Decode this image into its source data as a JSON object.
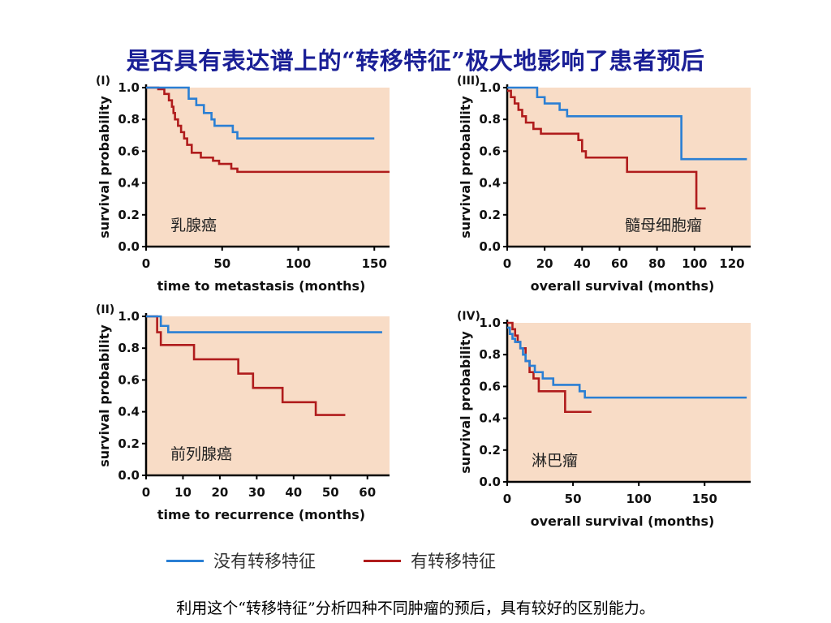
{
  "title": "是否具有表达谱上的“转移特征”极大地影响了患者预后",
  "caption": "利用这个“转移特征”分析四种不同肿瘤的预后，具有较好的区别能力。",
  "legend": {
    "no_signature": "没有转移特征",
    "signature": "有转移特征"
  },
  "colors": {
    "no_signature": "#2a7fd4",
    "signature": "#b01c1c",
    "plot_bg": "#f8dcc6",
    "axis": "#000000",
    "title": "#1a1f96"
  },
  "chart_data": [
    {
      "type": "line",
      "step": true,
      "panel_label": "(I)",
      "annotation": "乳腺癌",
      "xlabel": "time to metastasis (months)",
      "ylabel": "survival probability",
      "xlim": [
        0,
        160
      ],
      "ylim": [
        0,
        1.0
      ],
      "xticks": [
        0,
        50,
        100,
        150
      ],
      "yticks": [
        0.0,
        0.2,
        0.4,
        0.6,
        0.8,
        1.0
      ],
      "xtick_labels": [
        "0",
        "50",
        "100",
        "150"
      ],
      "ytick_labels": [
        "0.0",
        "0.2",
        "0.4",
        "0.6",
        "0.8",
        "1.0"
      ],
      "series": [
        {
          "key": "no_signature",
          "x": [
            0,
            20,
            28,
            33,
            38,
            43,
            45,
            50,
            57,
            60,
            150
          ],
          "y": [
            1.0,
            1.0,
            0.93,
            0.89,
            0.84,
            0.8,
            0.76,
            0.76,
            0.72,
            0.68,
            0.68
          ]
        },
        {
          "key": "signature",
          "x": [
            0,
            8,
            12,
            15,
            17,
            18,
            19,
            21,
            23,
            25,
            27,
            30,
            36,
            44,
            48,
            56,
            60,
            160
          ],
          "y": [
            1.0,
            0.99,
            0.96,
            0.92,
            0.88,
            0.84,
            0.8,
            0.76,
            0.72,
            0.68,
            0.64,
            0.59,
            0.56,
            0.54,
            0.52,
            0.49,
            0.47,
            0.47
          ]
        }
      ]
    },
    {
      "type": "line",
      "step": true,
      "panel_label": "(III)",
      "annotation": "髓母细胞瘤",
      "xlabel": "overall survival (months)",
      "ylabel": "survival probability",
      "xlim": [
        0,
        130
      ],
      "ylim": [
        0,
        1.0
      ],
      "xticks": [
        0,
        20,
        40,
        60,
        80,
        100,
        120
      ],
      "yticks": [
        0.0,
        0.2,
        0.4,
        0.6,
        0.8,
        1.0
      ],
      "xtick_labels": [
        "0",
        "20",
        "40",
        "60",
        "80",
        "100",
        "120"
      ],
      "ytick_labels": [
        "0.0",
        "0.2",
        "0.4",
        "0.6",
        "0.8",
        "1.0"
      ],
      "series": [
        {
          "key": "no_signature",
          "x": [
            0,
            14,
            16,
            20,
            28,
            32,
            93,
            128
          ],
          "y": [
            1.0,
            1.0,
            0.94,
            0.9,
            0.86,
            0.82,
            0.55,
            0.55
          ]
        },
        {
          "key": "signature",
          "x": [
            0,
            2,
            4,
            6,
            8,
            10,
            14,
            18,
            23,
            38,
            40,
            42,
            64,
            97,
            101,
            106
          ],
          "y": [
            0.98,
            0.94,
            0.9,
            0.86,
            0.82,
            0.78,
            0.74,
            0.71,
            0.71,
            0.67,
            0.6,
            0.56,
            0.47,
            0.47,
            0.24,
            0.24
          ]
        }
      ]
    },
    {
      "type": "line",
      "step": true,
      "panel_label": "(II)",
      "annotation": "前列腺癌",
      "xlabel": "time to recurrence (months)",
      "ylabel": "survival probability",
      "xlim": [
        0,
        66
      ],
      "ylim": [
        0,
        1.0
      ],
      "xticks": [
        0,
        10,
        20,
        30,
        40,
        50,
        60
      ],
      "yticks": [
        0.0,
        0.2,
        0.4,
        0.6,
        0.8,
        1.0
      ],
      "xtick_labels": [
        "0",
        "10",
        "20",
        "30",
        "40",
        "50",
        "60"
      ],
      "ytick_labels": [
        "0.0",
        "0.2",
        "0.4",
        "0.6",
        "0.8",
        "1.0"
      ],
      "series": [
        {
          "key": "no_signature",
          "x": [
            0,
            4,
            6,
            64
          ],
          "y": [
            1.0,
            0.94,
            0.9,
            0.9
          ]
        },
        {
          "key": "signature",
          "x": [
            0,
            3,
            4,
            13,
            25,
            29,
            37,
            46,
            54
          ],
          "y": [
            1.0,
            0.9,
            0.82,
            0.73,
            0.64,
            0.55,
            0.46,
            0.38,
            0.38
          ]
        }
      ]
    },
    {
      "type": "line",
      "step": true,
      "panel_label": "(IV)",
      "annotation": "淋巴瘤",
      "xlabel": "overall survival (months)",
      "ylabel": "survival probability",
      "xlim": [
        0,
        185
      ],
      "ylim": [
        0,
        1.0
      ],
      "xticks": [
        0,
        50,
        100,
        150
      ],
      "yticks": [
        0.0,
        0.2,
        0.4,
        0.6,
        0.8,
        1.0
      ],
      "xtick_labels": [
        "0",
        "50",
        "100",
        "150"
      ],
      "ytick_labels": [
        "0.0",
        "0.2",
        "0.4",
        "0.6",
        "0.8",
        "1.0"
      ],
      "series": [
        {
          "key": "no_signature",
          "x": [
            0,
            2,
            4,
            6,
            10,
            12,
            14,
            17,
            21,
            27,
            35,
            43,
            55,
            59,
            182
          ],
          "y": [
            0.97,
            0.93,
            0.9,
            0.88,
            0.84,
            0.8,
            0.76,
            0.73,
            0.69,
            0.65,
            0.61,
            0.61,
            0.57,
            0.53,
            0.53
          ]
        },
        {
          "key": "signature",
          "x": [
            0,
            4,
            6,
            8,
            10,
            14,
            17,
            20,
            24,
            34,
            44,
            64
          ],
          "y": [
            1.0,
            0.96,
            0.92,
            0.88,
            0.84,
            0.76,
            0.69,
            0.65,
            0.57,
            0.57,
            0.44,
            0.44
          ]
        }
      ]
    }
  ]
}
